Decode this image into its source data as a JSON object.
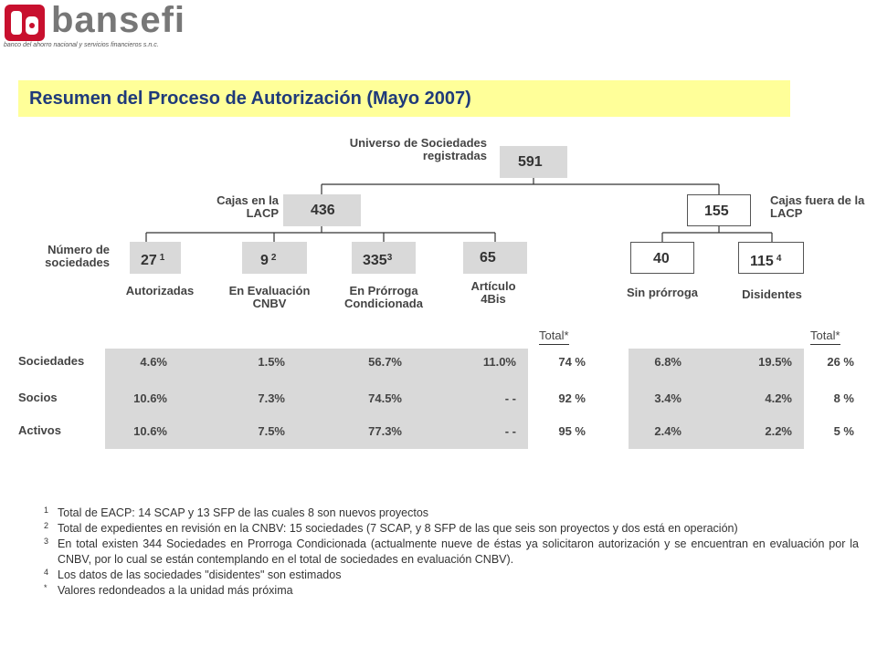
{
  "header": {
    "logo_name": "bansefi",
    "logo_tagline": "banco del ahorro nacional y servicios financieros s.n.c.",
    "title": "Resumen del Proceso de Autorización (Mayo 2007)"
  },
  "tree": {
    "root": {
      "label": "Universo de Sociedades registradas",
      "value": "591"
    },
    "row_label": "Número de sociedades",
    "groups": [
      {
        "label": "Cajas en la LACP",
        "value": "436",
        "children": [
          {
            "value": "27",
            "note": "1",
            "label": "Autorizadas"
          },
          {
            "value": "9",
            "note": "2",
            "label": "En Evaluación CNBV"
          },
          {
            "value": "335",
            "note": "3",
            "label": "En Prórroga Condicionada"
          },
          {
            "value": "65",
            "label": "Artículo 4Bis"
          }
        ]
      },
      {
        "label": "Cajas fuera de la LACP",
        "value": "155",
        "children": [
          {
            "value": "40",
            "label": "Sin prórroga"
          },
          {
            "value": "115",
            "note": "4",
            "label": "Disidentes"
          }
        ]
      }
    ]
  },
  "table": {
    "total_headers": [
      "Total*",
      "Total*"
    ],
    "rows": [
      {
        "label": "Sociedades",
        "values": [
          "4.6%",
          "1.5%",
          "56.7%",
          "11.0%",
          "74 %",
          "6.8%",
          "19.5%",
          "26 %"
        ]
      },
      {
        "label": "Socios",
        "values": [
          "10.6%",
          "7.3%",
          "74.5%",
          "- -",
          "92 %",
          "3.4%",
          "4.2%",
          "8 %"
        ]
      },
      {
        "label": "Activos",
        "values": [
          "10.6%",
          "7.5%",
          "77.3%",
          "- -",
          "95 %",
          "2.4%",
          "2.2%",
          "5 %"
        ]
      }
    ]
  },
  "footnotes": [
    {
      "marker": "1",
      "text": "Total de EACP: 14 SCAP y 13 SFP de las cuales 8 son nuevos proyectos"
    },
    {
      "marker": "2",
      "text": "Total de expedientes en revisión en la CNBV: 15 sociedades (7 SCAP, y 8 SFP de las que seis son proyectos y dos está en operación)"
    },
    {
      "marker": "3",
      "text": "En total existen 344 Sociedades en Prorroga Condicionada (actualmente nueve de éstas ya solicitaron autorización y se encuentran en evaluación por la CNBV, por lo cual se están contemplando en el total de sociedades en evaluación CNBV)."
    },
    {
      "marker": "4",
      "text": "Los datos de las sociedades \"disidentes\" son estimados"
    },
    {
      "marker": "*",
      "text": "Valores redondeados a la unidad más próxima"
    }
  ]
}
